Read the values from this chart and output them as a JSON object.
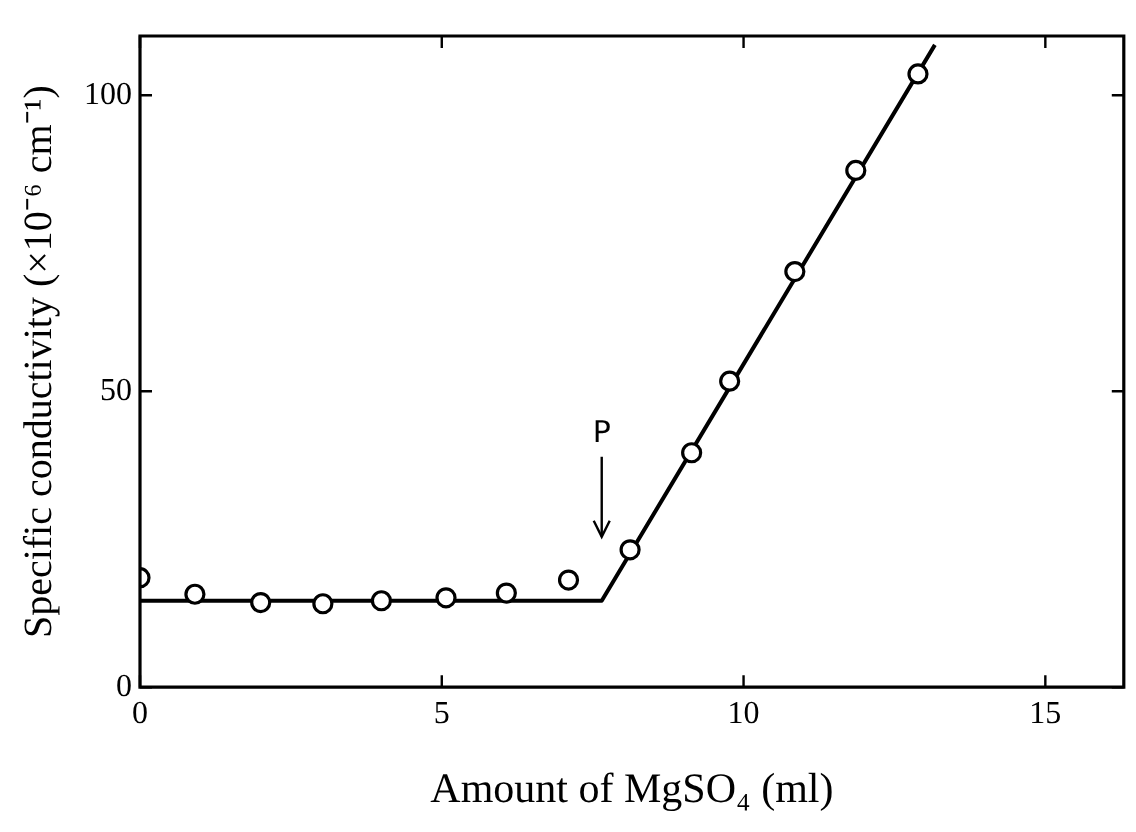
{
  "chart_data": {
    "type": "scatter",
    "xlabel": "Amount of MgSO₄ (ml)",
    "ylabel": "Specific conductivity (×10⁻⁶ cm⁻¹)",
    "xlim": [
      0,
      16.3
    ],
    "ylim": [
      0,
      110
    ],
    "xticks": [
      0,
      5,
      10,
      15
    ],
    "yticks": [
      0,
      50,
      100
    ],
    "grid": false,
    "legend": false,
    "marker": "circle",
    "series": [
      {
        "type": "scatter",
        "color": "#000000",
        "x": [
          0,
          0.91,
          2.0,
          3.03,
          4.0,
          5.07,
          6.07,
          7.1,
          8.12,
          9.14,
          9.77,
          10.85,
          11.86,
          12.89
        ],
        "values": [
          18.5,
          15.7,
          14.3,
          14.1,
          14.6,
          15.1,
          15.9,
          18.1,
          23.2,
          39.6,
          51.7,
          70.2,
          87.3,
          103.6
        ]
      },
      {
        "type": "line",
        "color": "#000000",
        "marker": "none",
        "x": [
          0,
          7.65,
          13.17
        ],
        "values": [
          14.6,
          14.6,
          108.5
        ]
      }
    ],
    "annotations": [
      "P"
    ]
  }
}
